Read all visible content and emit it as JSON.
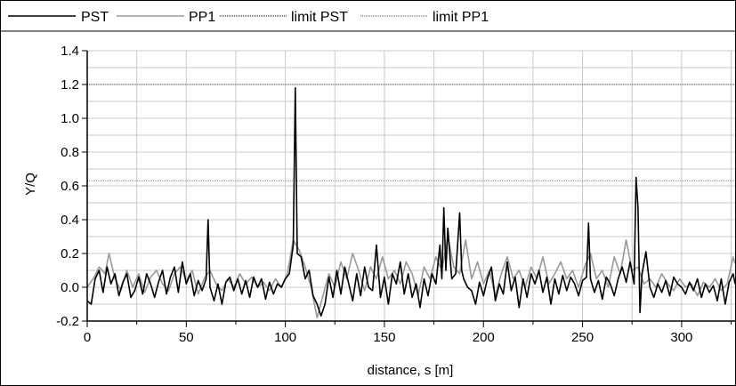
{
  "chart_data": {
    "type": "line",
    "xlabel": "distance, s [m]",
    "ylabel": "Y/Q",
    "xlim": [
      0,
      327
    ],
    "ylim": [
      -0.2,
      1.4
    ],
    "x_ticks": [
      0,
      50,
      100,
      150,
      200,
      250,
      300
    ],
    "y_ticks": [
      -0.2,
      0.0,
      0.2,
      0.4,
      0.6,
      0.8,
      1.0,
      1.2,
      1.4
    ],
    "y_tick_labels": [
      "-0.2",
      "0.0",
      "0.2",
      "0.4",
      "0.6",
      "0.8",
      "1.0",
      "1.2",
      "1.4"
    ],
    "grid": true,
    "legend_position": "top",
    "series": [
      {
        "name": "PST",
        "color": "#000000",
        "style": "solid",
        "x": [
          0,
          2,
          4,
          6,
          8,
          10,
          12,
          14,
          16,
          18,
          20,
          22,
          24,
          26,
          28,
          30,
          32,
          34,
          36,
          38,
          40,
          42,
          44,
          46,
          48,
          50,
          52,
          54,
          56,
          58,
          60,
          61,
          62,
          64,
          66,
          68,
          70,
          72,
          74,
          76,
          78,
          80,
          82,
          84,
          86,
          88,
          90,
          92,
          94,
          96,
          98,
          100,
          102,
          104,
          105,
          106,
          108,
          110,
          112,
          114,
          116,
          118,
          120,
          122,
          124,
          126,
          128,
          130,
          132,
          134,
          136,
          138,
          140,
          142,
          144,
          146,
          148,
          150,
          152,
          154,
          156,
          158,
          160,
          162,
          164,
          166,
          168,
          170,
          172,
          174,
          176,
          178,
          179,
          180,
          181,
          182,
          184,
          186,
          188,
          189,
          190,
          192,
          194,
          196,
          198,
          200,
          202,
          204,
          206,
          208,
          210,
          212,
          214,
          216,
          218,
          220,
          222,
          224,
          226,
          228,
          230,
          232,
          234,
          236,
          238,
          240,
          242,
          244,
          246,
          248,
          250,
          252,
          253,
          254,
          256,
          258,
          260,
          262,
          264,
          266,
          268,
          270,
          272,
          274,
          276,
          277,
          278,
          279,
          280,
          282,
          284,
          286,
          288,
          290,
          292,
          294,
          296,
          298,
          300,
          302,
          304,
          306,
          308,
          310,
          312,
          314,
          316,
          318,
          320,
          322,
          324,
          326,
          327
        ],
        "y": [
          -0.08,
          -0.1,
          0.05,
          0.1,
          -0.03,
          0.12,
          0.02,
          0.08,
          -0.05,
          0.03,
          0.08,
          -0.06,
          -0.02,
          0.06,
          -0.04,
          0.08,
          0.02,
          -0.06,
          0.03,
          0.1,
          -0.04,
          0.06,
          0.12,
          -0.03,
          0.15,
          0.02,
          0.08,
          -0.05,
          0.04,
          -0.02,
          0.05,
          0.4,
          0.0,
          -0.08,
          0.02,
          -0.1,
          0.03,
          0.06,
          -0.02,
          0.05,
          -0.04,
          0.04,
          -0.06,
          0.06,
          0.0,
          0.05,
          -0.07,
          0.03,
          -0.04,
          0.02,
          0.0,
          0.05,
          0.08,
          0.25,
          1.18,
          0.2,
          0.18,
          0.05,
          0.1,
          -0.05,
          -0.1,
          -0.17,
          -0.1,
          0.06,
          -0.06,
          0.1,
          -0.04,
          0.12,
          0.02,
          -0.08,
          0.08,
          -0.05,
          0.12,
          0.0,
          -0.02,
          0.25,
          -0.06,
          0.06,
          -0.1,
          0.08,
          0.02,
          0.15,
          -0.04,
          0.08,
          -0.06,
          0.02,
          -0.12,
          0.05,
          -0.05,
          0.08,
          0.02,
          0.25,
          0.05,
          0.47,
          0.1,
          0.35,
          0.05,
          0.08,
          0.44,
          0.1,
          0.05,
          0.0,
          -0.02,
          -0.1,
          0.03,
          -0.05,
          0.05,
          0.12,
          -0.08,
          0.02,
          -0.04,
          0.15,
          -0.02,
          0.06,
          -0.12,
          0.05,
          -0.06,
          0.08,
          0.02,
          0.1,
          -0.03,
          0.06,
          -0.1,
          0.05,
          -0.04,
          0.07,
          -0.02,
          0.06,
          0.02,
          -0.05,
          0.04,
          0.06,
          0.38,
          0.05,
          -0.03,
          0.04,
          -0.07,
          0.06,
          0.02,
          -0.05,
          0.05,
          0.12,
          0.03,
          0.15,
          0.02,
          0.65,
          0.47,
          -0.15,
          0.08,
          0.21,
          0.0,
          -0.06,
          0.02,
          -0.03,
          0.04,
          -0.05,
          0.06,
          0.02,
          0.0,
          -0.04,
          0.03,
          -0.02,
          0.05,
          -0.06,
          0.02,
          -0.03,
          0.01,
          -0.08,
          0.05,
          -0.1,
          0.03,
          0.08,
          0.02
        ]
      },
      {
        "name": "PP1",
        "color": "#999999",
        "style": "solid",
        "x": [
          0,
          3,
          6,
          9,
          11,
          14,
          17,
          20,
          23,
          26,
          29,
          32,
          35,
          38,
          41,
          44,
          47,
          50,
          53,
          56,
          59,
          62,
          65,
          68,
          71,
          74,
          77,
          80,
          83,
          86,
          89,
          92,
          95,
          98,
          101,
          104,
          107,
          110,
          113,
          116,
          119,
          122,
          125,
          128,
          131,
          134,
          137,
          140,
          143,
          146,
          149,
          152,
          155,
          158,
          161,
          164,
          167,
          170,
          173,
          176,
          179,
          182,
          185,
          188,
          191,
          194,
          197,
          200,
          203,
          206,
          209,
          212,
          215,
          218,
          221,
          224,
          227,
          230,
          233,
          236,
          239,
          242,
          245,
          248,
          251,
          254,
          257,
          260,
          263,
          266,
          269,
          272,
          275,
          278,
          281,
          284,
          287,
          290,
          293,
          296,
          299,
          302,
          305,
          308,
          311,
          314,
          317,
          320,
          323,
          326,
          327
        ],
        "y": [
          0.0,
          0.05,
          0.12,
          0.08,
          0.2,
          0.05,
          -0.02,
          0.1,
          0.0,
          0.08,
          -0.03,
          0.06,
          0.1,
          0.02,
          -0.02,
          0.08,
          0.12,
          0.04,
          0.1,
          -0.04,
          0.05,
          0.1,
          0.02,
          -0.02,
          0.05,
          0.0,
          0.08,
          0.02,
          0.06,
          0.0,
          0.03,
          -0.02,
          0.05,
          0.0,
          0.08,
          0.28,
          0.22,
          0.12,
          0.0,
          -0.18,
          -0.05,
          0.08,
          0.0,
          0.15,
          0.05,
          0.2,
          0.1,
          -0.02,
          0.12,
          0.05,
          0.18,
          0.05,
          0.1,
          0.02,
          0.15,
          0.08,
          -0.05,
          0.12,
          0.05,
          0.18,
          0.1,
          0.3,
          0.12,
          0.08,
          0.28,
          0.05,
          0.15,
          0.02,
          0.1,
          -0.05,
          0.08,
          0.18,
          0.05,
          0.1,
          0.0,
          0.12,
          0.05,
          0.18,
          0.02,
          0.08,
          0.15,
          0.05,
          0.1,
          0.0,
          0.12,
          0.2,
          0.05,
          0.1,
          0.0,
          0.18,
          0.08,
          0.28,
          0.1,
          0.12,
          0.02,
          0.05,
          0.0,
          0.08,
          0.02,
          -0.02,
          0.05,
          0.0,
          0.02,
          -0.05,
          0.03,
          0.0,
          0.05,
          -0.02,
          0.02,
          0.18,
          0.14
        ]
      }
    ],
    "limits": [
      {
        "name": "limit PST",
        "value": 1.2,
        "color": "#555555",
        "style": "dotted"
      },
      {
        "name": "limit PP1",
        "value": 0.63,
        "color": "#888888",
        "style": "dotted"
      }
    ]
  }
}
